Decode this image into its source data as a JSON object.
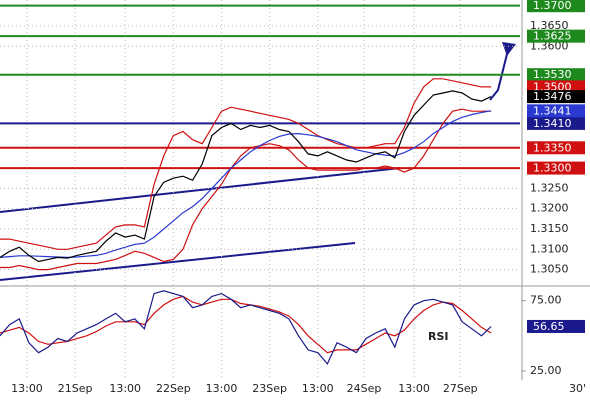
{
  "chart_data": [
    {
      "type": "line",
      "x": [
        0,
        1,
        2,
        3,
        4,
        5,
        6,
        7,
        8,
        9,
        10,
        11,
        12,
        13,
        14,
        15,
        16,
        17,
        18,
        19,
        20,
        21,
        22,
        23,
        24,
        25,
        26,
        27,
        28,
        29,
        30,
        31,
        32,
        33,
        34,
        35,
        36,
        37,
        38,
        39,
        40,
        41,
        42,
        43,
        44,
        45,
        46,
        47,
        48,
        49,
        50,
        51
      ],
      "xlim": [
        0,
        54
      ],
      "xticks": [
        {
          "value": 2.8,
          "label": "13:00"
        },
        {
          "value": 7.8,
          "label": "21Sep"
        },
        {
          "value": 13,
          "label": "13:00"
        },
        {
          "value": 18,
          "label": "22Sep"
        },
        {
          "value": 23,
          "label": "13:00"
        },
        {
          "value": 28,
          "label": "23Sep"
        },
        {
          "value": 33,
          "label": "13:00"
        },
        {
          "value": 37.8,
          "label": "24Sep"
        },
        {
          "value": 43,
          "label": "13:00"
        },
        {
          "value": 47.8,
          "label": "27Sep"
        }
      ],
      "x_end_label": "30'",
      "ylim": [
        1.3012,
        1.3714
      ],
      "yticks": [
        {
          "value": 1.365,
          "label": "1.3650"
        },
        {
          "value": 1.36,
          "label": "1.3600"
        },
        {
          "value": 1.325,
          "label": "1.3250"
        },
        {
          "value": 1.32,
          "label": "1.3200"
        },
        {
          "value": 1.315,
          "label": "1.3150"
        },
        {
          "value": 1.31,
          "label": "1.3100"
        },
        {
          "value": 1.305,
          "label": "1.3050"
        }
      ],
      "grid": true,
      "levels": [
        {
          "value": 1.37,
          "label": "1.3700",
          "color": "#1e8a1e"
        },
        {
          "value": 1.3625,
          "label": "1.3625",
          "color": "#1e8a1e"
        },
        {
          "value": 1.353,
          "label": "1.3530",
          "color": "#1e8a1e"
        },
        {
          "value": 1.341,
          "label": "1.3410",
          "color": "#1a1a8c"
        },
        {
          "value": 1.335,
          "label": "1.3350",
          "color": "#d01010"
        },
        {
          "value": 1.33,
          "label": "1.3300",
          "color": "#d01010"
        }
      ],
      "price_tags": [
        {
          "value": 1.35,
          "label": "1.3500",
          "color": "#d01010"
        },
        {
          "value": 1.3476,
          "label": "1.3476",
          "color": "#000000"
        },
        {
          "value": 1.3441,
          "label": "1.3441",
          "color": "#2a3ad0"
        }
      ],
      "series": [
        {
          "color": "#d01010",
          "values": [
            1.3125,
            1.3125,
            1.312,
            1.3115,
            1.311,
            1.3105,
            1.31,
            1.31,
            1.3105,
            1.311,
            1.3115,
            1.3135,
            1.3155,
            1.316,
            1.316,
            1.3155,
            1.326,
            1.333,
            1.338,
            1.339,
            1.337,
            1.336,
            1.34,
            1.344,
            1.345,
            1.3445,
            1.344,
            1.3435,
            1.343,
            1.3425,
            1.342,
            1.341,
            1.3395,
            1.338,
            1.337,
            1.336,
            1.3355,
            1.335,
            1.335,
            1.3355,
            1.336,
            1.336,
            1.34,
            1.346,
            1.35,
            1.352,
            1.352,
            1.3515,
            1.351,
            1.3505,
            1.35,
            1.35
          ]
        },
        {
          "color": "#d01010",
          "values": [
            1.3055,
            1.3055,
            1.306,
            1.3055,
            1.305,
            1.305,
            1.3055,
            1.306,
            1.3065,
            1.3065,
            1.3065,
            1.307,
            1.3075,
            1.3085,
            1.3095,
            1.309,
            1.308,
            1.307,
            1.3075,
            1.31,
            1.316,
            1.32,
            1.323,
            1.326,
            1.33,
            1.333,
            1.335,
            1.3355,
            1.336,
            1.3355,
            1.3345,
            1.332,
            1.33,
            1.3295,
            1.3295,
            1.3295,
            1.3295,
            1.3295,
            1.33,
            1.33,
            1.3305,
            1.33,
            1.329,
            1.33,
            1.333,
            1.337,
            1.341,
            1.344,
            1.3445,
            1.344,
            1.344,
            1.344
          ]
        },
        {
          "color": "#2a3ad0",
          "values": [
            1.308,
            1.3082,
            1.3084,
            1.3084,
            1.3083,
            1.3082,
            1.3081,
            1.308,
            1.3081,
            1.3083,
            1.3085,
            1.309,
            1.3098,
            1.3105,
            1.3112,
            1.3115,
            1.313,
            1.315,
            1.317,
            1.319,
            1.3205,
            1.3225,
            1.325,
            1.3275,
            1.33,
            1.332,
            1.334,
            1.3355,
            1.3368,
            1.3378,
            1.3384,
            1.3385,
            1.3382,
            1.3378,
            1.3372,
            1.3365,
            1.3355,
            1.3345,
            1.334,
            1.3335,
            1.3332,
            1.333,
            1.3338,
            1.335,
            1.3365,
            1.3385,
            1.34,
            1.3415,
            1.3425,
            1.3432,
            1.3437,
            1.3441
          ]
        },
        {
          "color": "#000000",
          "values": [
            1.308,
            1.3095,
            1.3105,
            1.3085,
            1.307,
            1.3075,
            1.308,
            1.3078,
            1.3085,
            1.309,
            1.3095,
            1.312,
            1.314,
            1.313,
            1.3135,
            1.3125,
            1.323,
            1.3265,
            1.3275,
            1.328,
            1.327,
            1.331,
            1.338,
            1.34,
            1.341,
            1.3395,
            1.3405,
            1.34,
            1.3405,
            1.3395,
            1.339,
            1.3365,
            1.3335,
            1.333,
            1.334,
            1.333,
            1.332,
            1.3315,
            1.3325,
            1.3335,
            1.334,
            1.3325,
            1.339,
            1.343,
            1.3455,
            1.348,
            1.3485,
            1.349,
            1.3485,
            1.347,
            1.3465,
            1.3476
          ]
        }
      ]
    },
    {
      "type": "line",
      "title": "RSI",
      "x": [
        0,
        1,
        2,
        3,
        4,
        5,
        6,
        7,
        8,
        9,
        10,
        11,
        12,
        13,
        14,
        15,
        16,
        17,
        18,
        19,
        20,
        21,
        22,
        23,
        24,
        25,
        26,
        27,
        28,
        29,
        30,
        31,
        32,
        33,
        34,
        35,
        36,
        37,
        38,
        39,
        40,
        41,
        42,
        43,
        44,
        45,
        46,
        47,
        48,
        49,
        50,
        51
      ],
      "xlim": [
        0,
        54
      ],
      "ylim": [
        20,
        84
      ],
      "yticks": [
        {
          "value": 75,
          "label": "75.00"
        },
        {
          "value": 25,
          "label": "25.00"
        }
      ],
      "price_tags": [
        {
          "value": 56.65,
          "label": "56.65",
          "color": "#1a1a8c"
        }
      ],
      "series": [
        {
          "color": "#d01010",
          "values": [
            52,
            54,
            56,
            52,
            46,
            44,
            45,
            46,
            48,
            50,
            53,
            57,
            60,
            60,
            60,
            58,
            66,
            72,
            76,
            78,
            74,
            72,
            74,
            76,
            76,
            73,
            72,
            71,
            69,
            67,
            64,
            58,
            50,
            44,
            38,
            40,
            40,
            40,
            44,
            48,
            52,
            50,
            54,
            62,
            68,
            72,
            74,
            73,
            68,
            62,
            56,
            52
          ]
        },
        {
          "color": "#1a1a8c",
          "values": [
            50,
            58,
            62,
            45,
            38,
            42,
            48,
            46,
            52,
            55,
            58,
            62,
            66,
            60,
            62,
            55,
            80,
            82,
            80,
            78,
            70,
            72,
            78,
            80,
            76,
            70,
            72,
            70,
            68,
            66,
            62,
            50,
            40,
            38,
            30,
            45,
            42,
            38,
            48,
            52,
            55,
            42,
            62,
            72,
            75,
            76,
            74,
            72,
            60,
            55,
            50,
            56.65
          ]
        }
      ]
    }
  ]
}
